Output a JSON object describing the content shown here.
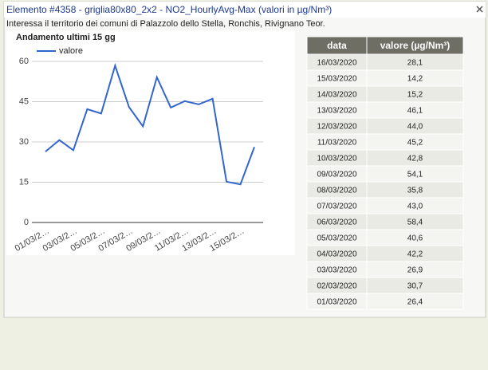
{
  "header": {
    "title": "Elemento #4358 - griglia80x80_2x2 - NO2_HourlyAvg-Max (valori in µg/Nm³)",
    "subtitle": "Interessa il territorio dei comuni di Palazzolo dello Stella, Ronchis, Rivignano Teor."
  },
  "chart_data": {
    "type": "line",
    "title": "Andamento ultimi 15 gg",
    "categories": [
      "01/03/2…",
      null,
      "03/03/2…",
      null,
      "05/03/2…",
      null,
      "07/03/2…",
      null,
      "09/03/2…",
      null,
      "11/03/2…",
      null,
      "13/03/2…",
      null,
      "15/03/2…",
      null
    ],
    "series": [
      {
        "name": "valore",
        "color": "#3366cc",
        "values": [
          26.4,
          30.7,
          26.9,
          42.2,
          40.6,
          58.4,
          43.0,
          35.8,
          54.1,
          42.8,
          45.2,
          44.0,
          46.1,
          15.2,
          14.2,
          28.1
        ]
      }
    ],
    "ylim": [
      0,
      60
    ],
    "yticks": [
      0,
      15,
      30,
      45,
      60
    ],
    "grid": true,
    "legend": "top-left"
  },
  "table": {
    "header": [
      "data",
      "valore (µg/Nm³)"
    ],
    "rows": [
      [
        "16/03/2020",
        "28,1"
      ],
      [
        "15/03/2020",
        "14,2"
      ],
      [
        "14/03/2020",
        "15,2"
      ],
      [
        "13/03/2020",
        "46,1"
      ],
      [
        "12/03/2020",
        "44,0"
      ],
      [
        "11/03/2020",
        "45,2"
      ],
      [
        "10/03/2020",
        "42,8"
      ],
      [
        "09/03/2020",
        "54,1"
      ],
      [
        "08/03/2020",
        "35,8"
      ],
      [
        "07/03/2020",
        "43,0"
      ],
      [
        "06/03/2020",
        "58,4"
      ],
      [
        "05/03/2020",
        "40,6"
      ],
      [
        "04/03/2020",
        "42,2"
      ],
      [
        "03/03/2020",
        "26,9"
      ],
      [
        "02/03/2020",
        "30,7"
      ],
      [
        "01/03/2020",
        "26,4"
      ]
    ]
  }
}
